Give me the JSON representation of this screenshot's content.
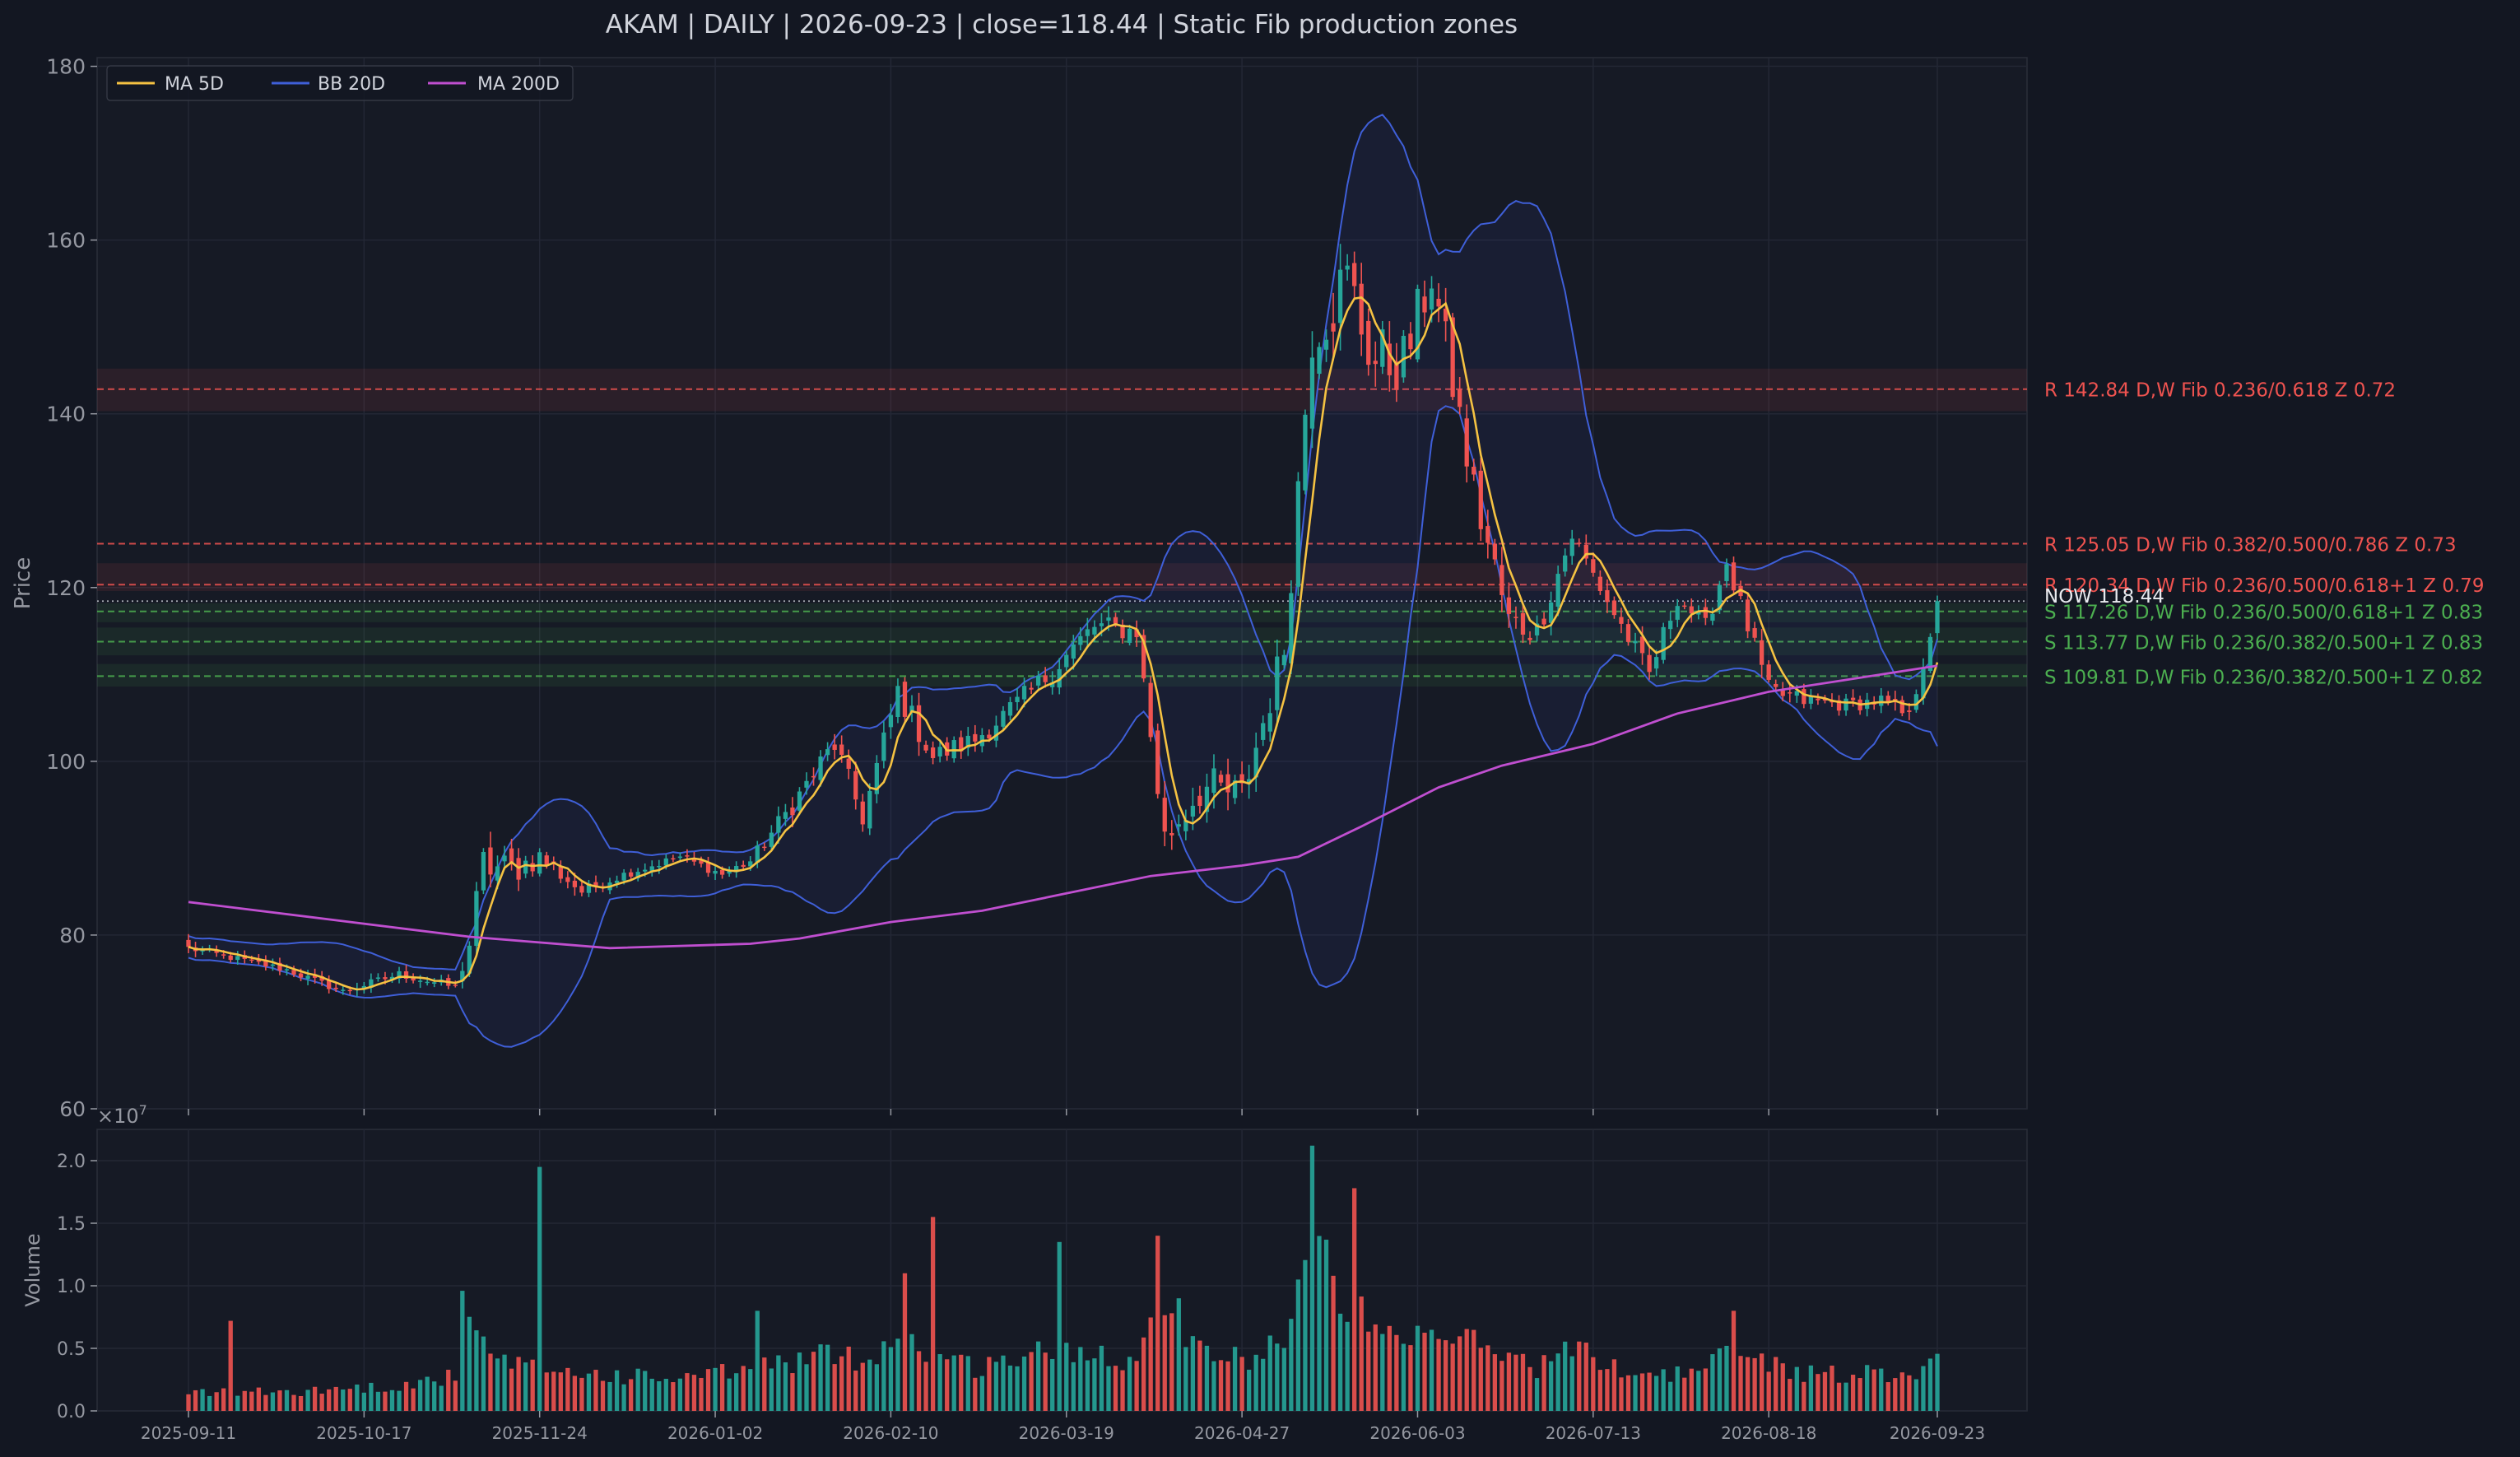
{
  "title": "AKAM  |  DAILY  |  2026-09-23  |  close=118.44  |  Static Fib production zones",
  "chart_data": {
    "type": "candlestick",
    "symbol": "AKAM",
    "interval": "DAILY",
    "date": "2026-09-23",
    "close": 118.44,
    "price_axis": {
      "label": "Price",
      "range": [
        60,
        181
      ],
      "ticks": [
        60,
        80,
        100,
        120,
        140,
        160,
        180
      ]
    },
    "volume_axis": {
      "label": "Volume",
      "multiplier_label": "×10",
      "multiplier_exp": "7",
      "range": [
        0,
        2.25
      ],
      "ticks": [
        "0.0",
        "0.5",
        "1.0",
        "1.5",
        "2.0"
      ],
      "tick_values": [
        0,
        0.5,
        1.0,
        1.5,
        2.0
      ]
    },
    "x_axis": {
      "tick_labels": [
        "2025-09-11",
        "2025-10-17",
        "2025-11-24",
        "2026-01-02",
        "2026-02-10",
        "2026-03-19",
        "2026-04-27",
        "2026-06-03",
        "2026-07-13",
        "2026-08-18",
        "2026-09-23"
      ],
      "tick_indices": [
        0,
        25,
        50,
        75,
        100,
        125,
        150,
        175,
        200,
        225,
        249
      ],
      "bar_count": 250
    },
    "legend": {
      "placement": "top-left",
      "entries": [
        {
          "label": "MA 5D",
          "color": "#f5c242"
        },
        {
          "label": "BB 20D",
          "color": "#3f5fd8"
        },
        {
          "label": "MA 200D",
          "color": "#c04fd0"
        }
      ]
    },
    "grid": true,
    "colors": {
      "background": "#131722",
      "panel": "#161a25",
      "up": "#26a69a",
      "down": "#ef5350",
      "resistance": "#ef5350",
      "support": "#4caf50",
      "text": "#9598a1",
      "title": "#d1d4dc"
    },
    "levels": [
      {
        "kind": "R",
        "price": 142.84,
        "zone": [
          140.3,
          145.2
        ],
        "label": "R 142.84  D,W  Fib 0.236/0.618  Z 0.72"
      },
      {
        "kind": "R",
        "price": 125.05,
        "zone": null,
        "label": "R 125.05  D,W  Fib 0.382/0.500/0.786  Z 0.73"
      },
      {
        "kind": "R",
        "price": 120.34,
        "zone": [
          119.6,
          122.8
        ],
        "label": "R 120.34  D,W  Fib 0.236/0.500/0.618+1  Z 0.79"
      },
      {
        "kind": "S",
        "price": 117.26,
        "zone": [
          116.0,
          118.2
        ],
        "label": "S 117.26  D,W  Fib 0.236/0.500/0.618+1  Z 0.83"
      },
      {
        "kind": "S",
        "price": 113.77,
        "zone": [
          112.2,
          115.4
        ],
        "label": "S 113.77  D,W  Fib 0.236/0.382/0.500+1  Z 0.83"
      },
      {
        "kind": "S",
        "price": 109.81,
        "zone": [
          108.6,
          111.2
        ],
        "label": "S 109.81  D,W  Fib 0.236/0.382/0.500+1  Z 0.82"
      }
    ],
    "now_label": "NOW 118.44",
    "now_price": 118.44,
    "anchors": [
      {
        "i": 0,
        "p": 78.5,
        "bbw": 2.5,
        "v": 0.15
      },
      {
        "i": 14,
        "p": 76,
        "bbw": 2.5,
        "v": 0.15
      },
      {
        "i": 22,
        "p": 73.5,
        "bbw": 2.5,
        "v": 0.18
      },
      {
        "i": 30,
        "p": 75.5,
        "bbw": 3.0,
        "v": 0.2
      },
      {
        "i": 38,
        "p": 74,
        "bbw": 3.0,
        "v": 0.28
      },
      {
        "i": 40,
        "p": 79,
        "bbw": 10,
        "v": 0.7
      },
      {
        "i": 42,
        "p": 88,
        "bbw": 14,
        "v": 0.5
      },
      {
        "i": 46,
        "p": 87.5,
        "bbw": 12,
        "v": 0.35
      },
      {
        "i": 50,
        "p": 89,
        "bbw": 8,
        "v": 0.35
      },
      {
        "i": 56,
        "p": 85,
        "bbw": 4,
        "v": 0.3
      },
      {
        "i": 62,
        "p": 87,
        "bbw": 3,
        "v": 0.28
      },
      {
        "i": 70,
        "p": 89,
        "bbw": 3,
        "v": 0.25
      },
      {
        "i": 76,
        "p": 87,
        "bbw": 3,
        "v": 0.3
      },
      {
        "i": 80,
        "p": 88.5,
        "bbw": 4,
        "v": 0.35
      },
      {
        "i": 86,
        "p": 95,
        "bbw": 7,
        "v": 0.4
      },
      {
        "i": 92,
        "p": 102,
        "bbw": 9,
        "v": 0.45
      },
      {
        "i": 96,
        "p": 93.5,
        "bbw": 7,
        "v": 0.4
      },
      {
        "i": 101,
        "p": 108,
        "bbw": 10,
        "v": 0.6
      },
      {
        "i": 106,
        "p": 100.5,
        "bbw": 8,
        "v": 0.45
      },
      {
        "i": 112,
        "p": 102.5,
        "bbw": 7,
        "v": 0.35
      },
      {
        "i": 120,
        "p": 108,
        "bbw": 8,
        "v": 0.45
      },
      {
        "i": 129,
        "p": 115.5,
        "bbw": 9,
        "v": 0.5
      },
      {
        "i": 135,
        "p": 115,
        "bbw": 7,
        "v": 0.4
      },
      {
        "i": 139,
        "p": 91,
        "bbw": 14,
        "v": 0.9
      },
      {
        "i": 144,
        "p": 97,
        "bbw": 16,
        "v": 0.5
      },
      {
        "i": 150,
        "p": 96,
        "bbw": 14,
        "v": 0.4
      },
      {
        "i": 156,
        "p": 113,
        "bbw": 14,
        "v": 0.6
      },
      {
        "i": 160,
        "p": 150,
        "bbw": 25,
        "v": 1.4
      },
      {
        "i": 165,
        "p": 155,
        "bbw": 28,
        "v": 0.9
      },
      {
        "i": 169,
        "p": 146,
        "bbw": 26,
        "v": 0.6
      },
      {
        "i": 173,
        "p": 146,
        "bbw": 22,
        "v": 0.5
      },
      {
        "i": 177,
        "p": 156,
        "bbw": 18,
        "v": 0.6
      },
      {
        "i": 183,
        "p": 131,
        "bbw": 18,
        "v": 0.55
      },
      {
        "i": 188,
        "p": 116,
        "bbw": 14,
        "v": 0.45
      },
      {
        "i": 192,
        "p": 115,
        "bbw": 9,
        "v": 0.35
      },
      {
        "i": 197,
        "p": 126,
        "bbw": 8,
        "v": 0.5
      },
      {
        "i": 203,
        "p": 117,
        "bbw": 7,
        "v": 0.35
      },
      {
        "i": 208,
        "p": 110,
        "bbw": 7,
        "v": 0.3
      },
      {
        "i": 212,
        "p": 119,
        "bbw": 7,
        "v": 0.3
      },
      {
        "i": 216,
        "p": 115.5,
        "bbw": 6,
        "v": 0.35
      },
      {
        "i": 219,
        "p": 123,
        "bbw": 7,
        "v": 0.45
      },
      {
        "i": 225,
        "p": 108,
        "bbw": 8,
        "v": 0.4
      },
      {
        "i": 230,
        "p": 107,
        "bbw": 6,
        "v": 0.3
      },
      {
        "i": 236,
        "p": 106.5,
        "bbw": 5,
        "v": 0.3
      },
      {
        "i": 241,
        "p": 107,
        "bbw": 5,
        "v": 0.3
      },
      {
        "i": 245,
        "p": 105,
        "bbw": 5,
        "v": 0.3
      },
      {
        "i": 249,
        "p": 118.44,
        "bbw": 9,
        "v": 0.4
      }
    ],
    "volume_spikes": [
      {
        "i": 6,
        "v": 0.72
      },
      {
        "i": 39,
        "v": 0.96
      },
      {
        "i": 50,
        "v": 1.95
      },
      {
        "i": 81,
        "v": 0.8
      },
      {
        "i": 102,
        "v": 1.1
      },
      {
        "i": 106,
        "v": 1.55
      },
      {
        "i": 124,
        "v": 1.35
      },
      {
        "i": 138,
        "v": 1.4
      },
      {
        "i": 141,
        "v": 0.9
      },
      {
        "i": 158,
        "v": 1.05
      },
      {
        "i": 160,
        "v": 2.12
      },
      {
        "i": 163,
        "v": 1.08
      },
      {
        "i": 166,
        "v": 1.78
      },
      {
        "i": 220,
        "v": 0.8
      }
    ],
    "ma200": [
      {
        "i": 0,
        "p": 83.8
      },
      {
        "i": 20,
        "p": 81.8
      },
      {
        "i": 40,
        "p": 79.8
      },
      {
        "i": 60,
        "p": 78.5
      },
      {
        "i": 80,
        "p": 79.0
      },
      {
        "i": 87,
        "p": 79.6
      },
      {
        "i": 100,
        "p": 81.5
      },
      {
        "i": 113,
        "p": 82.8
      },
      {
        "i": 125,
        "p": 84.8
      },
      {
        "i": 137,
        "p": 86.8
      },
      {
        "i": 150,
        "p": 88.0
      },
      {
        "i": 158,
        "p": 89.0
      },
      {
        "i": 167,
        "p": 92.5
      },
      {
        "i": 178,
        "p": 97.0
      },
      {
        "i": 187,
        "p": 99.5
      },
      {
        "i": 200,
        "p": 102.0
      },
      {
        "i": 212,
        "p": 105.5
      },
      {
        "i": 225,
        "p": 108.0
      },
      {
        "i": 237,
        "p": 109.5
      },
      {
        "i": 249,
        "p": 111.0
      }
    ]
  }
}
